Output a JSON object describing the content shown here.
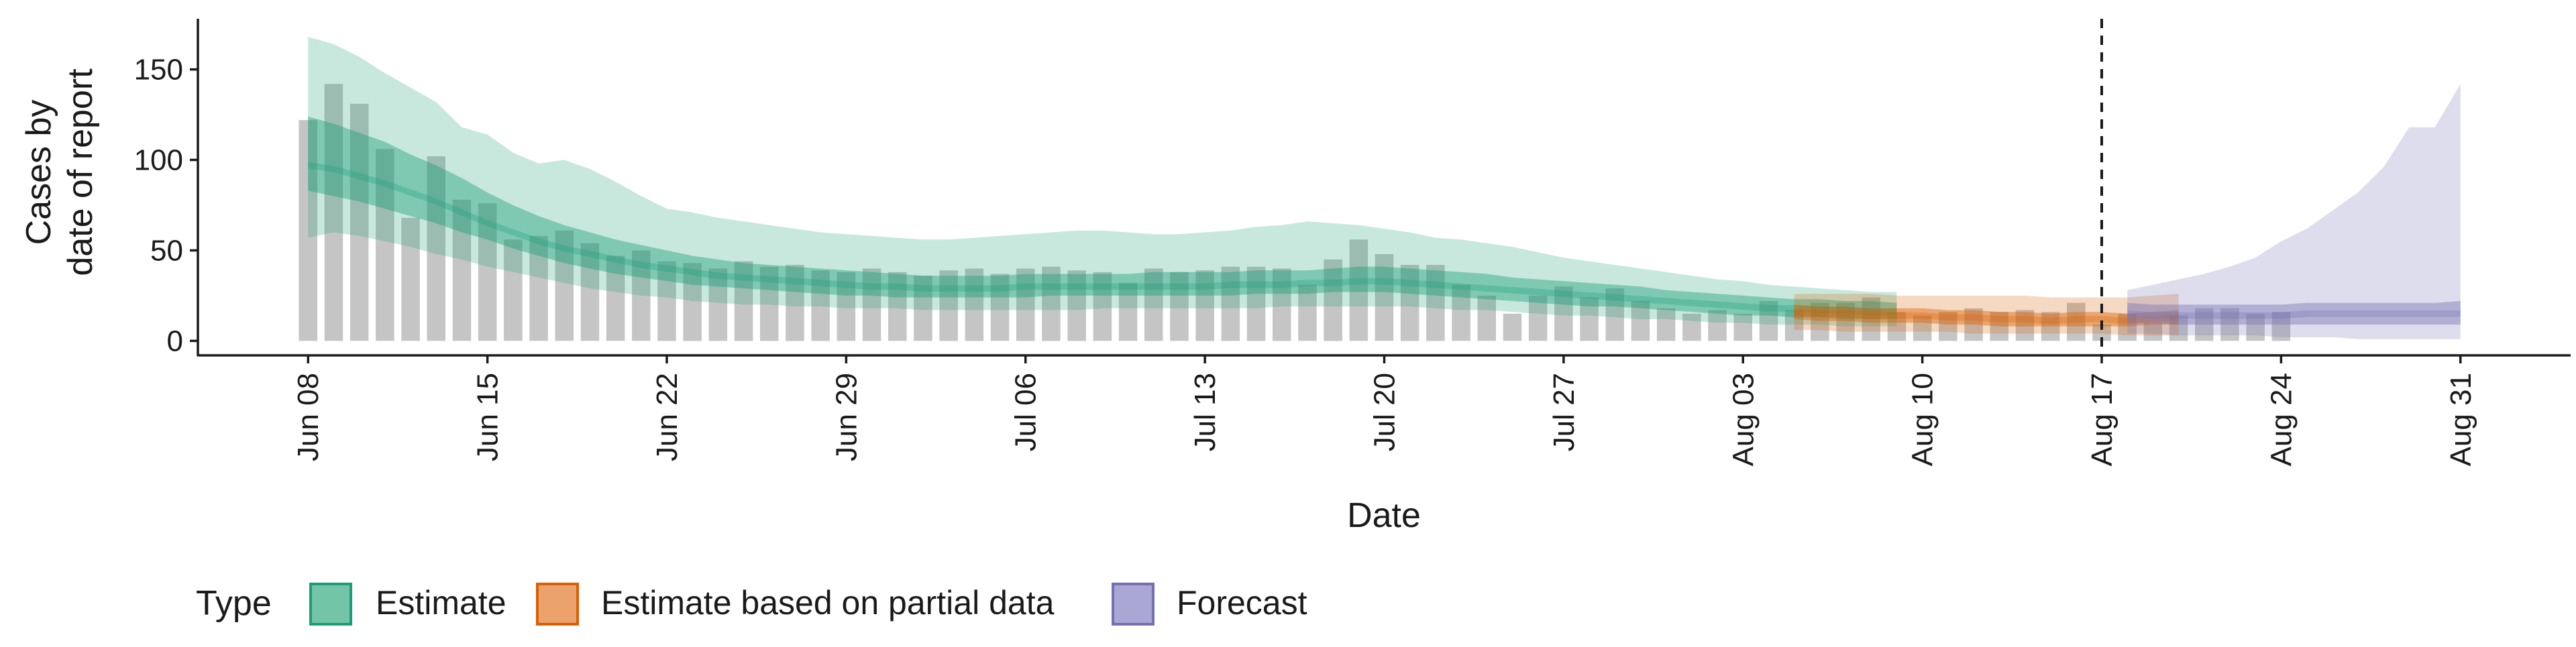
{
  "chart_data": {
    "type": "area",
    "xlabel": "Date",
    "ylabel_lines": [
      "Cases by",
      "date of report"
    ],
    "ylim": [
      -8,
      178
    ],
    "y_ticks": [
      0,
      50,
      100,
      150
    ],
    "x_ticks": [
      "Jun 08",
      "Jun 15",
      "Jun 22",
      "Jun 29",
      "Jul 06",
      "Jul 13",
      "Jul 20",
      "Jul 27",
      "Aug 03",
      "Aug 10",
      "Aug 17",
      "Aug 24",
      "Aug 31"
    ],
    "x_range_days": [
      -4.3,
      88.3
    ],
    "forecast_date": "Aug 17",
    "legend": {
      "title": "Type",
      "placement": "bottom-left",
      "items": [
        {
          "label": "Estimate",
          "fill": "#74c4a8",
          "stroke": "#1b9e77"
        },
        {
          "label": "Estimate based on partial data",
          "fill": "#eba26d",
          "stroke": "#d95f02"
        },
        {
          "label": "Forecast",
          "fill": "#aaa7d4",
          "stroke": "#7570b3"
        }
      ]
    },
    "colors": {
      "bars": "#bfbfbf",
      "estimate": "#1b9e77",
      "partial": "#d95f02",
      "forecast": "#7570b3",
      "vline": "#1a1a1a"
    },
    "reported_cases": {
      "start": "Jun 08",
      "values": [
        122,
        142,
        131,
        106,
        68,
        102,
        78,
        76,
        56,
        58,
        61,
        54,
        47,
        50,
        44,
        43,
        40,
        44,
        41,
        42,
        39,
        38,
        40,
        38,
        36,
        39,
        40,
        37,
        40,
        41,
        39,
        38,
        32,
        40,
        38,
        39,
        41,
        41,
        40,
        31,
        45,
        56,
        48,
        42,
        42,
        31,
        25,
        15,
        25,
        30,
        24,
        29,
        22,
        18,
        15,
        17,
        15,
        22,
        17,
        21,
        21,
        24,
        16,
        14,
        16,
        18,
        16,
        17,
        16,
        21,
        9,
        15,
        10,
        14,
        18,
        18,
        15,
        16
      ]
    },
    "series": [
      {
        "name": "Estimate",
        "start": "Jun 08",
        "median": [
          97,
          95,
          91,
          87,
          82,
          77,
          71,
          65,
          60,
          55,
          51,
          48,
          45,
          42,
          40,
          38,
          36,
          35,
          34,
          33,
          32,
          31,
          30,
          30,
          29,
          29,
          29,
          29,
          30,
          30,
          30,
          30,
          30,
          30,
          30,
          30,
          31,
          31,
          31,
          32,
          32,
          33,
          33,
          32,
          31,
          30,
          29,
          28,
          27,
          26,
          25,
          24,
          23,
          22,
          21,
          20,
          19,
          18,
          18,
          17,
          17,
          16,
          16
        ],
        "inner_low": [
          83,
          80,
          77,
          73,
          69,
          65,
          60,
          56,
          51,
          47,
          43,
          40,
          37,
          35,
          33,
          31,
          30,
          29,
          28,
          27,
          26,
          25,
          25,
          24,
          24,
          24,
          24,
          24,
          24,
          25,
          25,
          25,
          25,
          25,
          25,
          25,
          25,
          26,
          26,
          26,
          27,
          27,
          27,
          26,
          25,
          24,
          23,
          22,
          21,
          20,
          19,
          19,
          18,
          17,
          16,
          15,
          14,
          14,
          13,
          13,
          12,
          12,
          12
        ],
        "inner_high": [
          124,
          120,
          115,
          110,
          103,
          97,
          90,
          82,
          75,
          69,
          64,
          60,
          56,
          53,
          50,
          47,
          45,
          43,
          42,
          41,
          40,
          39,
          38,
          37,
          36,
          36,
          36,
          36,
          37,
          37,
          37,
          37,
          37,
          38,
          38,
          38,
          38,
          39,
          39,
          39,
          40,
          41,
          41,
          40,
          39,
          38,
          37,
          35,
          34,
          33,
          32,
          31,
          30,
          28,
          27,
          26,
          25,
          24,
          23,
          23,
          22,
          22,
          21
        ],
        "outer_low": [
          57,
          60,
          58,
          55,
          52,
          48,
          45,
          41,
          38,
          35,
          32,
          29,
          27,
          25,
          24,
          22,
          21,
          20,
          20,
          19,
          19,
          18,
          18,
          18,
          17,
          17,
          17,
          17,
          17,
          17,
          17,
          18,
          18,
          18,
          18,
          18,
          18,
          18,
          19,
          19,
          19,
          19,
          19,
          19,
          18,
          17,
          17,
          16,
          15,
          14,
          14,
          13,
          12,
          12,
          11,
          10,
          10,
          9,
          9,
          9,
          8,
          8,
          8
        ],
        "outer_high": [
          168,
          164,
          157,
          148,
          140,
          132,
          118,
          114,
          104,
          98,
          100,
          95,
          88,
          80,
          73,
          71,
          68,
          66,
          64,
          62,
          60,
          59,
          58,
          57,
          56,
          56,
          57,
          58,
          59,
          60,
          61,
          61,
          60,
          59,
          59,
          60,
          61,
          63,
          64,
          66,
          65,
          64,
          62,
          60,
          57,
          56,
          54,
          52,
          49,
          46,
          44,
          42,
          40,
          38,
          36,
          34,
          33,
          31,
          30,
          29,
          28,
          27,
          27
        ]
      },
      {
        "name": "Estimate based on partial data",
        "start": "Aug 05",
        "median": [
          16,
          15,
          15,
          14,
          14,
          14,
          13,
          13,
          12,
          12,
          11,
          12,
          12,
          11,
          12,
          13
        ],
        "inner_low": [
          12,
          11,
          11,
          10,
          10,
          10,
          9,
          9,
          8,
          8,
          8,
          8,
          8,
          8,
          9,
          9
        ],
        "inner_high": [
          20,
          19,
          19,
          18,
          18,
          18,
          17,
          17,
          16,
          16,
          15,
          16,
          16,
          15,
          16,
          17
        ],
        "outer_low": [
          6,
          6,
          5,
          5,
          5,
          5,
          5,
          4,
          4,
          4,
          4,
          4,
          4,
          3,
          3,
          3
        ],
        "outer_high": [
          26,
          26,
          26,
          26,
          25,
          25,
          25,
          25,
          25,
          25,
          24,
          24,
          24,
          24,
          25,
          26
        ]
      },
      {
        "name": "Forecast",
        "start": "Aug 18",
        "median": [
          15,
          14,
          14,
          14,
          14,
          14,
          14,
          15,
          15,
          15,
          15,
          15,
          15,
          15
        ],
        "inner_low": [
          10,
          10,
          9,
          9,
          9,
          9,
          9,
          9,
          9,
          9,
          9,
          9,
          9,
          9
        ],
        "inner_high": [
          21,
          20,
          20,
          20,
          20,
          20,
          20,
          21,
          21,
          21,
          21,
          21,
          21,
          22
        ],
        "outer_low": [
          4,
          4,
          3,
          3,
          3,
          3,
          2,
          2,
          2,
          1,
          1,
          1,
          1,
          1
        ],
        "outer_high": [
          28,
          31,
          34,
          37,
          41,
          46,
          55,
          62,
          72,
          82,
          96,
          118,
          118,
          142
        ]
      }
    ]
  }
}
